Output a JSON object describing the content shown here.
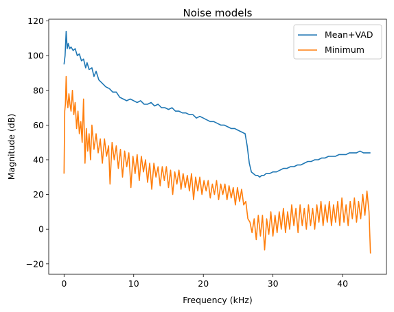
{
  "chart_data": {
    "type": "line",
    "title": "Noise models",
    "xlabel": "Frequency (kHz)",
    "ylabel": "Magnitude (dB)",
    "xlim": [
      -2.2,
      46.3
    ],
    "ylim": [
      -26,
      121
    ],
    "xticks": [
      0,
      10,
      20,
      30,
      40
    ],
    "yticks": [
      -20,
      0,
      20,
      40,
      60,
      80,
      100,
      120
    ],
    "grid": false,
    "legend_position": "upper right",
    "series": [
      {
        "name": "Mean+VAD",
        "color": "#1f77b4",
        "points": [
          [
            0.0,
            95
          ],
          [
            0.15,
            100
          ],
          [
            0.3,
            114
          ],
          [
            0.45,
            104
          ],
          [
            0.6,
            107
          ],
          [
            0.8,
            104
          ],
          [
            1.0,
            105
          ],
          [
            1.3,
            103
          ],
          [
            1.6,
            104
          ],
          [
            1.9,
            100
          ],
          [
            2.2,
            101
          ],
          [
            2.5,
            97
          ],
          [
            2.8,
            98
          ],
          [
            3.1,
            93
          ],
          [
            3.3,
            96
          ],
          [
            3.6,
            92
          ],
          [
            4.0,
            93
          ],
          [
            4.3,
            88
          ],
          [
            4.6,
            91
          ],
          [
            5.0,
            86
          ],
          [
            5.5,
            84
          ],
          [
            6.0,
            82
          ],
          [
            6.5,
            81
          ],
          [
            7.0,
            79
          ],
          [
            7.5,
            79
          ],
          [
            8.0,
            76
          ],
          [
            8.5,
            75
          ],
          [
            9.0,
            74
          ],
          [
            9.5,
            75
          ],
          [
            10.0,
            74
          ],
          [
            10.5,
            73
          ],
          [
            11.0,
            74
          ],
          [
            11.5,
            72
          ],
          [
            12.0,
            72
          ],
          [
            12.5,
            73
          ],
          [
            13.0,
            71
          ],
          [
            13.5,
            72
          ],
          [
            14.0,
            70
          ],
          [
            14.5,
            70
          ],
          [
            15.0,
            69
          ],
          [
            15.5,
            70
          ],
          [
            16.0,
            68
          ],
          [
            16.5,
            68
          ],
          [
            17.0,
            67
          ],
          [
            17.5,
            67
          ],
          [
            18.0,
            66
          ],
          [
            18.5,
            66
          ],
          [
            19.0,
            64
          ],
          [
            19.5,
            65
          ],
          [
            20.0,
            64
          ],
          [
            20.5,
            63
          ],
          [
            21.0,
            62
          ],
          [
            21.5,
            62
          ],
          [
            22.0,
            61
          ],
          [
            22.5,
            60
          ],
          [
            23.0,
            60
          ],
          [
            23.5,
            59
          ],
          [
            24.0,
            58
          ],
          [
            24.5,
            58
          ],
          [
            25.0,
            57
          ],
          [
            25.5,
            56
          ],
          [
            26.0,
            55
          ],
          [
            26.3,
            48
          ],
          [
            26.6,
            38
          ],
          [
            26.9,
            33
          ],
          [
            27.2,
            32
          ],
          [
            27.5,
            31
          ],
          [
            27.8,
            31
          ],
          [
            28.1,
            30
          ],
          [
            28.4,
            31
          ],
          [
            28.7,
            31
          ],
          [
            29.0,
            32
          ],
          [
            29.5,
            32
          ],
          [
            30.0,
            33
          ],
          [
            30.5,
            33
          ],
          [
            31.0,
            34
          ],
          [
            31.5,
            35
          ],
          [
            32.0,
            35
          ],
          [
            32.5,
            36
          ],
          [
            33.0,
            36
          ],
          [
            33.5,
            37
          ],
          [
            34.0,
            37
          ],
          [
            34.5,
            38
          ],
          [
            35.0,
            39
          ],
          [
            35.5,
            39
          ],
          [
            36.0,
            40
          ],
          [
            36.5,
            40
          ],
          [
            37.0,
            41
          ],
          [
            37.5,
            41
          ],
          [
            38.0,
            42
          ],
          [
            38.5,
            42
          ],
          [
            39.0,
            42
          ],
          [
            39.5,
            43
          ],
          [
            40.0,
            43
          ],
          [
            40.5,
            43
          ],
          [
            41.0,
            44
          ],
          [
            41.5,
            44
          ],
          [
            42.0,
            44
          ],
          [
            42.5,
            45
          ],
          [
            43.0,
            44
          ],
          [
            43.5,
            44
          ],
          [
            44.0,
            44
          ]
        ]
      },
      {
        "name": "Minimum",
        "color": "#ff7f0e",
        "points": [
          [
            0.0,
            32
          ],
          [
            0.1,
            68
          ],
          [
            0.2,
            72
          ],
          [
            0.3,
            88
          ],
          [
            0.4,
            75
          ],
          [
            0.55,
            70
          ],
          [
            0.7,
            78
          ],
          [
            0.85,
            72
          ],
          [
            1.0,
            68
          ],
          [
            1.2,
            80
          ],
          [
            1.4,
            66
          ],
          [
            1.6,
            73
          ],
          [
            1.8,
            58
          ],
          [
            2.0,
            68
          ],
          [
            2.2,
            55
          ],
          [
            2.4,
            62
          ],
          [
            2.6,
            50
          ],
          [
            2.8,
            75
          ],
          [
            3.0,
            38
          ],
          [
            3.2,
            58
          ],
          [
            3.4,
            45
          ],
          [
            3.6,
            55
          ],
          [
            3.8,
            40
          ],
          [
            4.0,
            60
          ],
          [
            4.3,
            46
          ],
          [
            4.6,
            55
          ],
          [
            4.9,
            44
          ],
          [
            5.2,
            52
          ],
          [
            5.5,
            38
          ],
          [
            5.8,
            52
          ],
          [
            6.1,
            42
          ],
          [
            6.4,
            48
          ],
          [
            6.6,
            26
          ],
          [
            6.9,
            50
          ],
          [
            7.2,
            40
          ],
          [
            7.5,
            48
          ],
          [
            7.8,
            35
          ],
          [
            8.1,
            46
          ],
          [
            8.4,
            30
          ],
          [
            8.7,
            45
          ],
          [
            9.0,
            36
          ],
          [
            9.3,
            44
          ],
          [
            9.6,
            24
          ],
          [
            9.9,
            42
          ],
          [
            10.2,
            32
          ],
          [
            10.5,
            43
          ],
          [
            10.8,
            28
          ],
          [
            11.1,
            42
          ],
          [
            11.4,
            33
          ],
          [
            11.7,
            40
          ],
          [
            12.0,
            27
          ],
          [
            12.3,
            38
          ],
          [
            12.6,
            23
          ],
          [
            12.9,
            38
          ],
          [
            13.2,
            30
          ],
          [
            13.5,
            36
          ],
          [
            13.8,
            25
          ],
          [
            14.1,
            36
          ],
          [
            14.4,
            28
          ],
          [
            14.7,
            36
          ],
          [
            15.0,
            24
          ],
          [
            15.3,
            34
          ],
          [
            15.6,
            20
          ],
          [
            15.9,
            33
          ],
          [
            16.2,
            26
          ],
          [
            16.5,
            34
          ],
          [
            16.8,
            23
          ],
          [
            17.1,
            32
          ],
          [
            17.4,
            24
          ],
          [
            17.7,
            31
          ],
          [
            18.0,
            22
          ],
          [
            18.3,
            32
          ],
          [
            18.6,
            17
          ],
          [
            18.9,
            30
          ],
          [
            19.2,
            22
          ],
          [
            19.5,
            30
          ],
          [
            19.8,
            20
          ],
          [
            20.1,
            28
          ],
          [
            20.4,
            22
          ],
          [
            20.7,
            28
          ],
          [
            21.0,
            18
          ],
          [
            21.3,
            26
          ],
          [
            21.6,
            20
          ],
          [
            21.9,
            28
          ],
          [
            22.2,
            17
          ],
          [
            22.5,
            26
          ],
          [
            22.8,
            20
          ],
          [
            23.1,
            26
          ],
          [
            23.4,
            17
          ],
          [
            23.7,
            25
          ],
          [
            24.0,
            18
          ],
          [
            24.3,
            24
          ],
          [
            24.6,
            14
          ],
          [
            24.9,
            24
          ],
          [
            25.2,
            16
          ],
          [
            25.5,
            23
          ],
          [
            25.8,
            14
          ],
          [
            26.1,
            16
          ],
          [
            26.4,
            6
          ],
          [
            26.7,
            4
          ],
          [
            27.0,
            -2
          ],
          [
            27.3,
            6
          ],
          [
            27.6,
            -6
          ],
          [
            27.9,
            8
          ],
          [
            28.2,
            -4
          ],
          [
            28.5,
            8
          ],
          [
            28.8,
            -12
          ],
          [
            29.1,
            6
          ],
          [
            29.4,
            -3
          ],
          [
            29.7,
            10
          ],
          [
            30.0,
            -4
          ],
          [
            30.3,
            8
          ],
          [
            30.6,
            -2
          ],
          [
            30.9,
            10
          ],
          [
            31.2,
            0
          ],
          [
            31.5,
            12
          ],
          [
            31.8,
            -2
          ],
          [
            32.1,
            10
          ],
          [
            32.4,
            0
          ],
          [
            32.7,
            14
          ],
          [
            33.0,
            2
          ],
          [
            33.3,
            12
          ],
          [
            33.6,
            -2
          ],
          [
            33.9,
            14
          ],
          [
            34.2,
            2
          ],
          [
            34.5,
            12
          ],
          [
            34.8,
            0
          ],
          [
            35.1,
            14
          ],
          [
            35.4,
            2
          ],
          [
            35.7,
            12
          ],
          [
            36.0,
            0
          ],
          [
            36.3,
            14
          ],
          [
            36.6,
            4
          ],
          [
            36.9,
            16
          ],
          [
            37.2,
            2
          ],
          [
            37.5,
            14
          ],
          [
            37.8,
            4
          ],
          [
            38.1,
            16
          ],
          [
            38.4,
            2
          ],
          [
            38.7,
            14
          ],
          [
            39.0,
            4
          ],
          [
            39.3,
            16
          ],
          [
            39.6,
            2
          ],
          [
            39.9,
            18
          ],
          [
            40.2,
            4
          ],
          [
            40.5,
            14
          ],
          [
            40.8,
            2
          ],
          [
            41.1,
            16
          ],
          [
            41.4,
            6
          ],
          [
            41.7,
            18
          ],
          [
            42.0,
            4
          ],
          [
            42.3,
            16
          ],
          [
            42.6,
            6
          ],
          [
            42.9,
            20
          ],
          [
            43.2,
            8
          ],
          [
            43.5,
            22
          ],
          [
            43.8,
            10
          ],
          [
            44.0,
            -14
          ]
        ]
      }
    ]
  }
}
